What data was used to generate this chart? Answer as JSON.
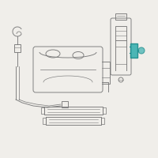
{
  "bg_color": "#f0eeea",
  "line_color": "#7a7a7a",
  "highlight_color": "#1a8a8a",
  "highlight_color2": "#3ab0b0",
  "white": "#ffffff"
}
